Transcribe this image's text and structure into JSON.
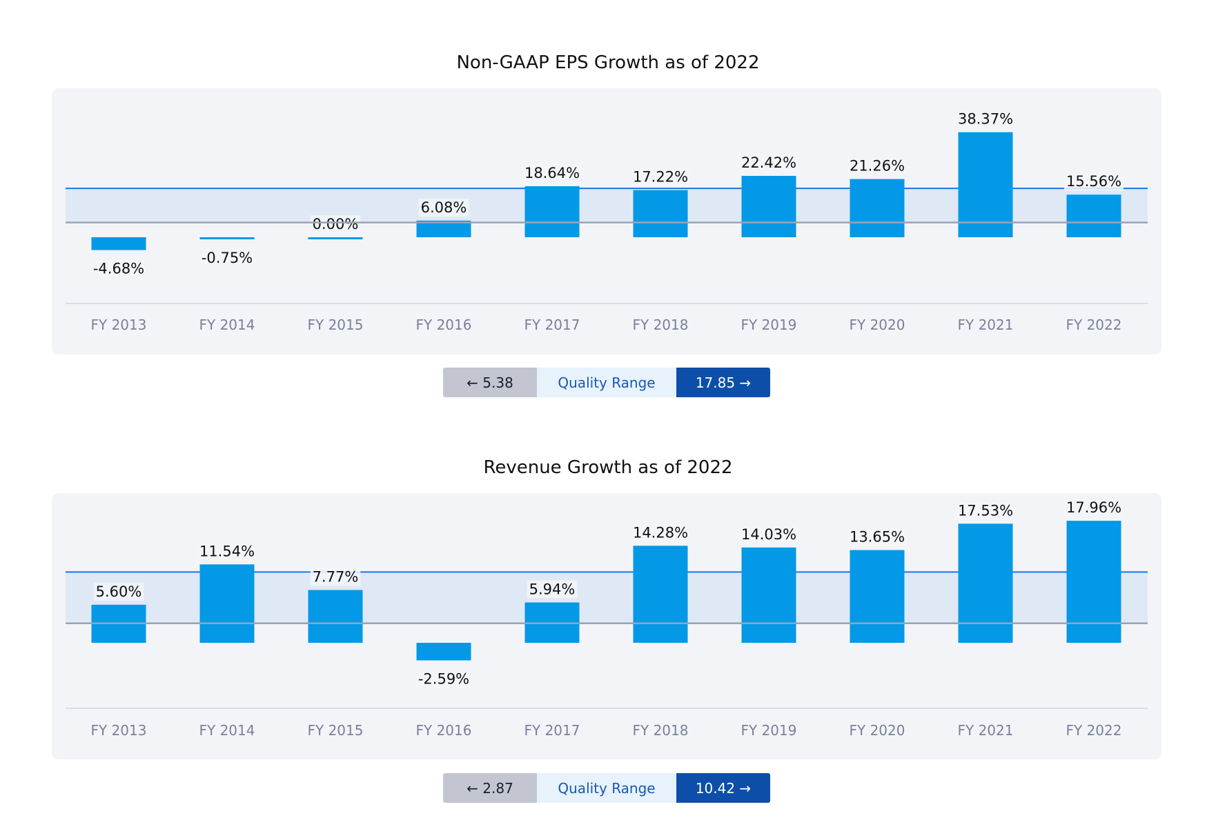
{
  "chart_data": [
    {
      "type": "bar",
      "title": "Non-GAAP EPS Growth as of 2022",
      "categories": [
        "FY 2013",
        "FY 2014",
        "FY 2015",
        "FY 2016",
        "FY 2017",
        "FY 2018",
        "FY 2019",
        "FY 2020",
        "FY 2021",
        "FY 2022"
      ],
      "values": [
        -4.68,
        -0.75,
        0.0,
        6.08,
        18.64,
        17.22,
        22.42,
        21.26,
        38.37,
        15.56
      ],
      "labels": [
        "-4.68%",
        "-0.75%",
        "0.00%",
        "6.08%",
        "18.64%",
        "17.22%",
        "22.42%",
        "21.26%",
        "38.37%",
        "15.56%"
      ],
      "quality_range": {
        "low": 5.38,
        "high": 17.85,
        "low_label": "← 5.38",
        "label": "Quality Range",
        "high_label": "17.85 →"
      },
      "bar_color": "#0399e6",
      "band_color": "#dfe9f5",
      "band_line_color": "#1a73e8"
    },
    {
      "type": "bar",
      "title": "Revenue Growth as of 2022",
      "categories": [
        "FY 2013",
        "FY 2014",
        "FY 2015",
        "FY 2016",
        "FY 2017",
        "FY 2018",
        "FY 2019",
        "FY 2020",
        "FY 2021",
        "FY 2022"
      ],
      "values": [
        5.6,
        11.54,
        7.77,
        -2.59,
        5.94,
        14.28,
        14.03,
        13.65,
        17.53,
        17.96
      ],
      "labels": [
        "5.60%",
        "11.54%",
        "7.77%",
        "-2.59%",
        "5.94%",
        "14.28%",
        "14.03%",
        "13.65%",
        "17.53%",
        "17.96%"
      ],
      "quality_range": {
        "low": 2.87,
        "high": 10.42,
        "low_label": "← 2.87",
        "label": "Quality Range",
        "high_label": "10.42 →"
      },
      "bar_color": "#0399e6",
      "band_color": "#dfe9f5",
      "band_line_color": "#1a73e8"
    }
  ]
}
